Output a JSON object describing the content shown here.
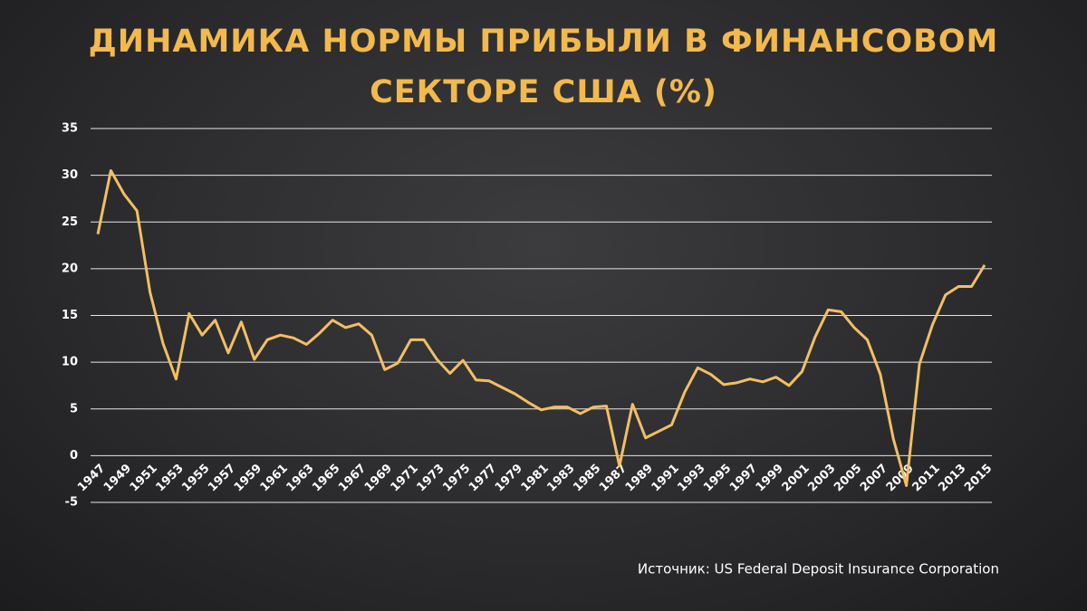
{
  "chart_data": {
    "type": "line",
    "title": "ДИНАМИКА НОРМЫ ПРИБЫЛИ В ФИНАНСОВОМ СЕКТОРЕ США (%)",
    "source": "Источник: US Federal Deposit Insurance Corporation",
    "x": [
      1947,
      1948,
      1949,
      1950,
      1951,
      1952,
      1953,
      1954,
      1955,
      1956,
      1957,
      1958,
      1959,
      1960,
      1961,
      1962,
      1963,
      1964,
      1965,
      1966,
      1967,
      1968,
      1969,
      1970,
      1971,
      1972,
      1973,
      1974,
      1975,
      1976,
      1977,
      1978,
      1979,
      1980,
      1981,
      1982,
      1983,
      1984,
      1985,
      1986,
      1987,
      1988,
      1989,
      1990,
      1991,
      1992,
      1993,
      1994,
      1995,
      1996,
      1997,
      1998,
      1999,
      2000,
      2001,
      2002,
      2003,
      2004,
      2005,
      2006,
      2007,
      2008,
      2009,
      2010,
      2011,
      2012,
      2013,
      2014,
      2015
    ],
    "values": [
      23.7,
      30.5,
      28,
      26.2,
      17.5,
      12,
      8.2,
      15.2,
      12.9,
      14.5,
      11,
      14.3,
      10.3,
      12.4,
      12.9,
      12.6,
      11.9,
      13.1,
      14.5,
      13.7,
      14.1,
      12.9,
      9.2,
      9.9,
      12.4,
      12.4,
      10.3,
      8.8,
      10.2,
      8.1,
      8,
      7.3,
      6.6,
      5.7,
      4.9,
      5.2,
      5.2,
      4.5,
      5.2,
      5.3,
      -1.1,
      5.5,
      1.9,
      2.6,
      3.3,
      6.8,
      9.4,
      8.7,
      7.6,
      7.8,
      8.2,
      7.9,
      8.4,
      7.5,
      9,
      12.7,
      15.6,
      15.4,
      13.7,
      12.4,
      8.7,
      1.8,
      -3.2,
      9.8,
      14,
      17.2,
      18.1,
      18.1,
      20.4
    ],
    "color": "#f2bf62",
    "xlim": [
      1947,
      2015
    ],
    "xticks": [
      1947,
      1949,
      1951,
      1953,
      1955,
      1957,
      1959,
      1961,
      1963,
      1965,
      1967,
      1969,
      1971,
      1973,
      1975,
      1977,
      1979,
      1981,
      1983,
      1985,
      1987,
      1989,
      1991,
      1993,
      1995,
      1997,
      1999,
      2001,
      2003,
      2005,
      2007,
      2009,
      2011,
      2013,
      2015
    ],
    "ylim": [
      -5,
      35
    ],
    "yticks": [
      -5,
      0,
      5,
      10,
      15,
      20,
      25,
      30,
      35
    ],
    "grid": true
  }
}
